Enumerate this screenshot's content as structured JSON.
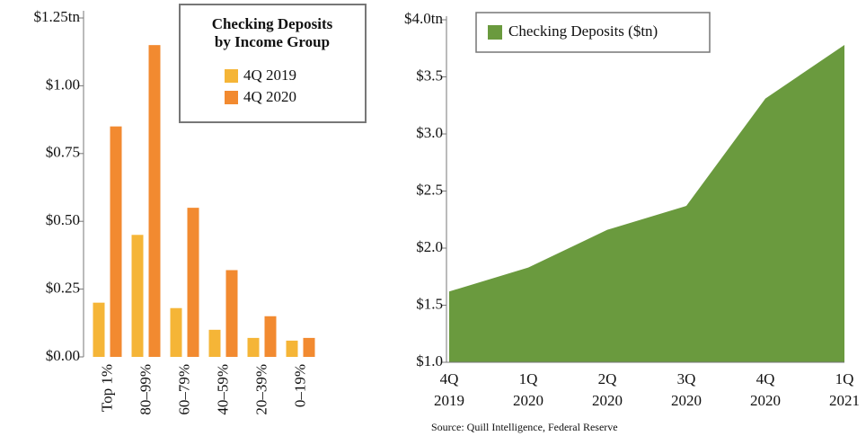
{
  "chart_data": [
    {
      "type": "bar",
      "legend_title": [
        "Checking Deposits",
        "by Income Group"
      ],
      "categories": [
        "Top 1%",
        "80–99%",
        "60–79%",
        "40–59%",
        "20–39%",
        "0–19%"
      ],
      "series": [
        {
          "name": "4Q 2019",
          "color": "#f5b537",
          "values": [
            0.2,
            0.45,
            0.18,
            0.1,
            0.07,
            0.06
          ]
        },
        {
          "name": "4Q 2020",
          "color": "#f28a30",
          "values": [
            0.85,
            1.15,
            0.55,
            0.32,
            0.15,
            0.07
          ]
        }
      ],
      "ylim": [
        0,
        1.25
      ],
      "yticks": [
        {
          "value": 0,
          "label": "$0.00"
        },
        {
          "value": 0.25,
          "label": "$0.25"
        },
        {
          "value": 0.5,
          "label": "$0.50"
        },
        {
          "value": 0.75,
          "label": "$0.75"
        },
        {
          "value": 1,
          "label": "$1.00"
        },
        {
          "value": 1.25,
          "label": "$1.25tn"
        }
      ]
    },
    {
      "type": "area",
      "categories": [
        [
          "4Q",
          "2019"
        ],
        [
          "1Q",
          "2020"
        ],
        [
          "2Q",
          "2020"
        ],
        [
          "3Q",
          "2020"
        ],
        [
          "4Q",
          "2020"
        ],
        [
          "1Q",
          "2021"
        ]
      ],
      "series": [
        {
          "name": "Checking Deposits ($tn)",
          "color": "#6a9a3e",
          "values": [
            1.62,
            1.83,
            2.16,
            2.37,
            3.31,
            3.78
          ]
        }
      ],
      "ylim": [
        1,
        4
      ],
      "yticks": [
        {
          "value": 1,
          "label": "$1.0"
        },
        {
          "value": 1.5,
          "label": "$1.5"
        },
        {
          "value": 2,
          "label": "$2.0"
        },
        {
          "value": 2.5,
          "label": "$2.5"
        },
        {
          "value": 3,
          "label": "$3.0"
        },
        {
          "value": 3.5,
          "label": "$3.5"
        },
        {
          "value": 4,
          "label": "$4.0tn"
        }
      ]
    }
  ],
  "source": "Source:  Quill Intelligence, Federal Reserve"
}
